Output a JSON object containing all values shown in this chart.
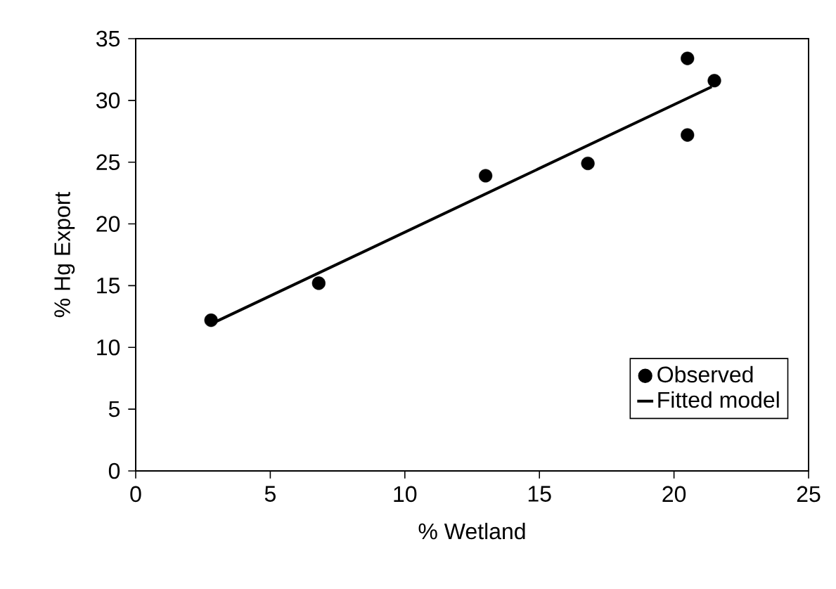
{
  "chart_data": {
    "type": "scatter",
    "xlabel": "% Wetland",
    "ylabel": "% Hg Export",
    "xlim": [
      0,
      25
    ],
    "ylim": [
      0,
      35
    ],
    "xticks": [
      0,
      5,
      10,
      15,
      20,
      25
    ],
    "yticks": [
      0,
      5,
      10,
      15,
      20,
      25,
      30,
      35
    ],
    "grid": false,
    "legend": "bottom right",
    "series": [
      {
        "name": "Observed",
        "color": "#000000",
        "marker": "circle",
        "x": [
          2.8,
          6.8,
          13.0,
          16.8,
          20.5,
          20.5,
          21.5
        ],
        "values": [
          12.2,
          15.2,
          23.9,
          24.9,
          33.4,
          27.2,
          31.6
        ]
      },
      {
        "name": "Fitted model",
        "type": "line",
        "color": "#000000",
        "marker": "none",
        "line_style": "solid",
        "x": [
          2.8,
          21.4
        ],
        "values": [
          11.9,
          31.1
        ]
      }
    ]
  }
}
